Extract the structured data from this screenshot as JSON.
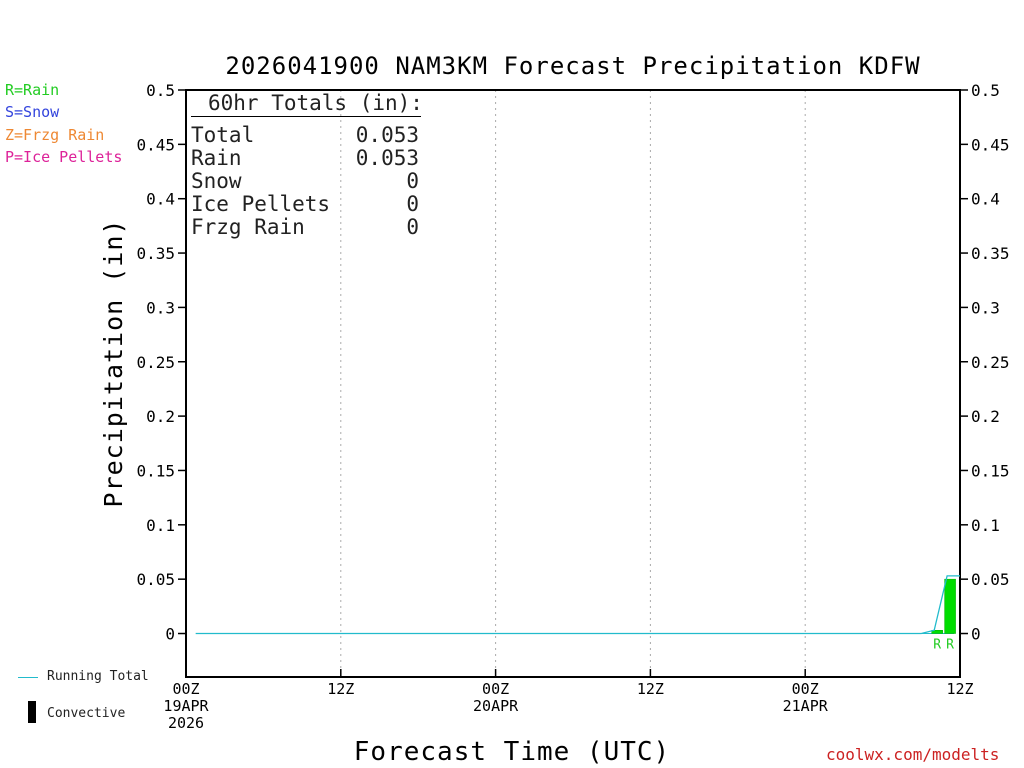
{
  "title": "2026041900 NAM3KM Forecast Precipitation KDFW",
  "legend_types": [
    {
      "label": "R=Rain",
      "color": "#22cc22"
    },
    {
      "label": "S=Snow",
      "color": "#3344dd"
    },
    {
      "label": "Z=Frzg Rain",
      "color": "#ee8833"
    },
    {
      "label": "P=Ice Pellets",
      "color": "#dd2299"
    }
  ],
  "legend_bottom": {
    "running_total": "Running Total",
    "running_total_color": "#22bbcc",
    "convective": "Convective"
  },
  "totals": {
    "heading": "60hr Totals (in):",
    "rows": [
      {
        "label": "Total",
        "value": "0.053"
      },
      {
        "label": "Rain",
        "value": "0.053"
      },
      {
        "label": "Snow",
        "value": "0"
      },
      {
        "label": "Ice Pellets",
        "value": "0"
      },
      {
        "label": "Frzg Rain",
        "value": "0"
      }
    ]
  },
  "credit": "coolwx.com/modelts",
  "credit_color": "#cc2222",
  "chart_data": {
    "type": "bar",
    "title": "2026041900 NAM3KM Forecast Precipitation KDFW",
    "xlabel": "Forecast Time (UTC)",
    "ylabel": "Precipitation (in)",
    "xlim_hours": [
      0,
      60
    ],
    "ylim": [
      -0.04,
      0.5
    ],
    "y_ticks": [
      0,
      0.05,
      0.1,
      0.15,
      0.2,
      0.25,
      0.3,
      0.35,
      0.4,
      0.45,
      0.5
    ],
    "y_tick_labels": [
      "0",
      "0.05",
      "0.1",
      "0.15",
      "0.2",
      "0.25",
      "0.3",
      "0.35",
      "0.4",
      "0.45",
      "0.5"
    ],
    "x_ticks": [
      {
        "hour": 0,
        "lines": [
          "00Z",
          "19APR",
          "2026"
        ]
      },
      {
        "hour": 12,
        "lines": [
          "12Z"
        ]
      },
      {
        "hour": 24,
        "lines": [
          "00Z",
          "20APR"
        ]
      },
      {
        "hour": 36,
        "lines": [
          "12Z"
        ]
      },
      {
        "hour": 48,
        "lines": [
          "00Z",
          "21APR"
        ]
      },
      {
        "hour": 60,
        "lines": [
          "12Z"
        ]
      }
    ],
    "grid_vertical_hours": [
      12,
      24,
      36,
      48
    ],
    "bars": [
      {
        "hour": 58,
        "value": 0.003,
        "type": "R"
      },
      {
        "hour": 59,
        "value": 0.05,
        "type": "R"
      }
    ],
    "running_total": {
      "hours": [
        0.75,
        57,
        58,
        59,
        60
      ],
      "values": [
        0,
        0,
        0.003,
        0.053,
        0.053
      ]
    }
  }
}
